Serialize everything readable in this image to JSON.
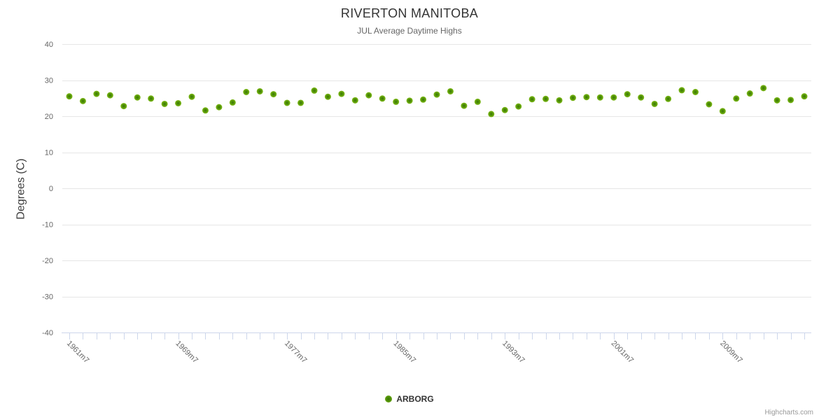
{
  "header": {
    "title": "RIVERTON MANITOBA",
    "subtitle": "JUL Average Daytime Highs"
  },
  "chart_data": {
    "type": "scatter",
    "title": "RIVERTON MANITOBA",
    "subtitle": "JUL Average Daytime Highs",
    "xlabel": "",
    "ylabel": "Degrees (C)",
    "ylim": [
      -40,
      40
    ],
    "y_ticks": [
      40,
      30,
      20,
      10,
      0,
      -10,
      -20,
      -30,
      -40
    ],
    "y_tick_labels": [
      "40",
      "30",
      "20",
      "10",
      "0",
      "-10",
      "-20",
      "-30",
      "-40"
    ],
    "grid": true,
    "legend_position": "bottom",
    "x_label_interval": 8,
    "visible_x_labels": [
      "1961m7",
      "1969m7",
      "1977m7",
      "1985m7",
      "1993m7",
      "2001m7",
      "2009m7"
    ],
    "categories": [
      "1961m7",
      "1962m7",
      "1963m7",
      "1964m7",
      "1965m7",
      "1966m7",
      "1967m7",
      "1968m7",
      "1969m7",
      "1970m7",
      "1971m7",
      "1972m7",
      "1973m7",
      "1974m7",
      "1975m7",
      "1976m7",
      "1977m7",
      "1978m7",
      "1979m7",
      "1980m7",
      "1981m7",
      "1982m7",
      "1983m7",
      "1984m7",
      "1985m7",
      "1986m7",
      "1987m7",
      "1988m7",
      "1989m7",
      "1990m7",
      "1991m7",
      "1992m7",
      "1993m7",
      "1994m7",
      "1995m7",
      "1996m7",
      "1997m7",
      "1998m7",
      "1999m7",
      "2000m7",
      "2001m7",
      "2002m7",
      "2003m7",
      "2004m7",
      "2005m7",
      "2006m7",
      "2007m7",
      "2008m7",
      "2009m7",
      "2010m7",
      "2011m7",
      "2012m7",
      "2013m7",
      "2014m7",
      "2015m7"
    ],
    "series": [
      {
        "name": "ARBORG",
        "values": [
          25.5,
          24.2,
          26.2,
          25.8,
          22.8,
          25.2,
          24.9,
          23.4,
          23.6,
          25.4,
          21.6,
          22.5,
          23.8,
          26.7,
          26.9,
          26.1,
          23.7,
          23.7,
          27.1,
          25.4,
          26.2,
          24.4,
          25.8,
          24.9,
          24.0,
          24.3,
          24.6,
          26.0,
          26.9,
          22.9,
          24.0,
          20.6,
          21.7,
          22.7,
          24.7,
          24.8,
          24.4,
          25.1,
          25.3,
          25.2,
          25.2,
          26.1,
          25.2,
          23.4,
          24.8,
          27.2,
          26.7,
          23.3,
          21.4,
          24.9,
          26.3,
          27.8,
          24.4,
          24.5,
          25.5
        ]
      }
    ]
  },
  "legend": {
    "items": [
      {
        "label": "ARBORG",
        "marker_color": "#7db41b"
      }
    ]
  },
  "credits": {
    "label": "Highcharts.com"
  },
  "colors": {
    "title": "#333333",
    "subtitle": "#666666",
    "axis_label": "#666666",
    "gridline": "#e6e6e6",
    "axis_line": "#ccd6eb",
    "marker_edge": "#7fbc17",
    "marker_mid": "#4c8c06",
    "marker_center": "#3a7a02"
  }
}
